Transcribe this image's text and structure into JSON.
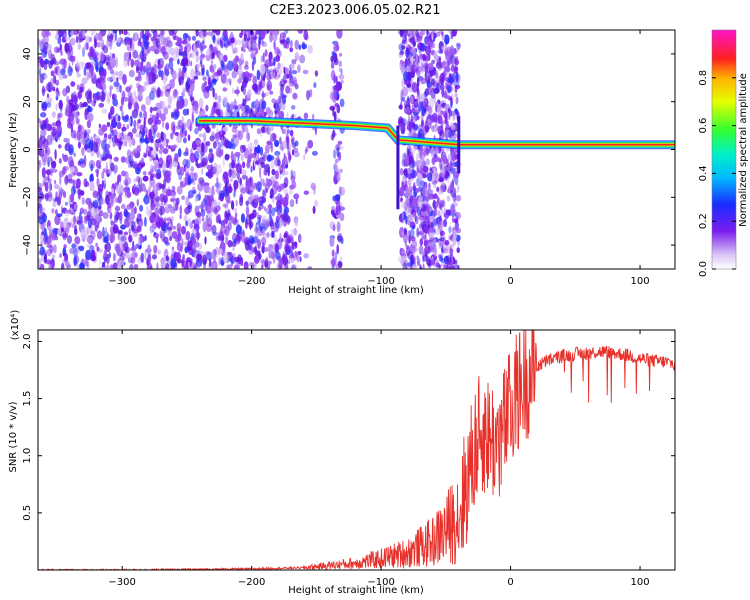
{
  "title": "C2E3.2023.006.05.02.R21",
  "chart_data": [
    {
      "type": "heatmap",
      "title": "C2E3.2023.006.05.02.R21",
      "xlabel": "Height of straight line (km)",
      "ylabel": "Frequency (Hz)",
      "xlim": [
        -365,
        127
      ],
      "ylim": [
        -50,
        50
      ],
      "xticks": [
        -300,
        -200,
        -100,
        0,
        100
      ],
      "yticks": [
        -40,
        -20,
        0,
        20,
        40
      ],
      "colorbar": {
        "label": "Normalized spectral amplitude",
        "range": [
          0.0,
          1.0
        ],
        "ticks": [
          0.0,
          0.2,
          0.4,
          0.6,
          0.8
        ],
        "tick_labels": [
          "0.0",
          "0.2",
          "0.4",
          "0.6",
          "0.8"
        ],
        "colormap": "rainbow (purple-blue-cyan-green-yellow-red-magenta)"
      },
      "features": {
        "noise_region": "scattered purple speckle from -365 to about -165 km, and from -85 to -40 km",
        "tone_track": [
          {
            "x": -240,
            "y": 12
          },
          {
            "x": -200,
            "y": 12
          },
          {
            "x": -160,
            "y": 11
          },
          {
            "x": -120,
            "y": 10
          },
          {
            "x": -95,
            "y": 9
          },
          {
            "x": -87,
            "y": 4
          },
          {
            "x": -40,
            "y": 2
          },
          {
            "x": 0,
            "y": 2
          },
          {
            "x": 50,
            "y": 2
          },
          {
            "x": 127,
            "y": 2
          }
        ]
      }
    },
    {
      "type": "line",
      "xlabel": "Height of straight line (km)",
      "ylabel": "SNR (10 * v/v)",
      "y_multiplier": "(x10⁴)",
      "xlim": [
        -365,
        127
      ],
      "ylim": [
        0,
        2.1
      ],
      "xticks": [
        -300,
        -200,
        -100,
        0,
        100
      ],
      "yticks": [
        0.5,
        1.0,
        1.5,
        2.0
      ],
      "ytick_labels": [
        "0.5",
        "1.0",
        "1.5",
        "2.0"
      ],
      "color": "#e8302a",
      "series": [
        {
          "x": [
            -365,
            -300,
            -200,
            -160,
            -140,
            -120,
            -100,
            -80,
            -60,
            -50,
            -40,
            -35,
            -30,
            -25,
            -20,
            -15,
            -10,
            -5,
            0,
            5,
            10,
            15,
            20,
            30,
            40,
            50,
            60,
            70,
            80,
            90,
            100,
            110,
            120,
            127
          ],
          "y": [
            0.0,
            0.0,
            0.01,
            0.02,
            0.04,
            0.06,
            0.1,
            0.15,
            0.25,
            0.35,
            0.5,
            0.7,
            0.95,
            1.15,
            1.2,
            1.15,
            1.1,
            1.25,
            1.4,
            1.55,
            1.65,
            1.72,
            1.78,
            1.84,
            1.87,
            1.89,
            1.9,
            1.91,
            1.9,
            1.88,
            1.85,
            1.83,
            1.82,
            1.8
          ]
        }
      ]
    }
  ]
}
